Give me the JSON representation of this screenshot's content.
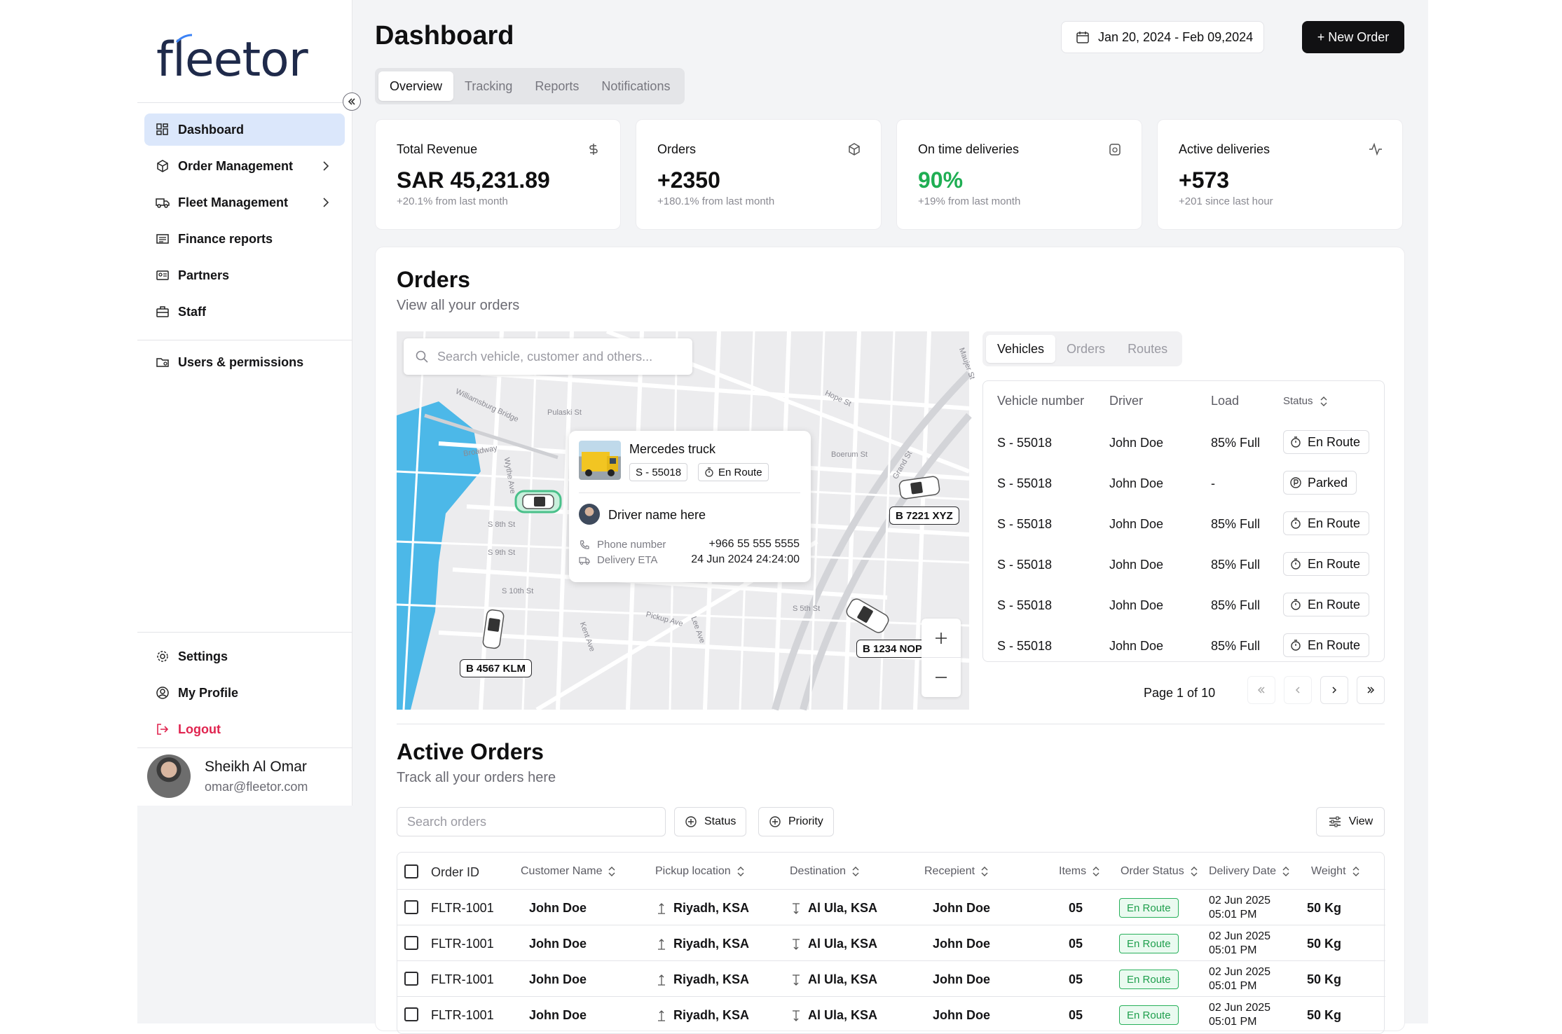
{
  "brand": {
    "logo_text": "fleetor"
  },
  "sidebar": {
    "items": [
      {
        "label": "Dashboard"
      },
      {
        "label": "Order Management"
      },
      {
        "label": "Fleet Management"
      },
      {
        "label": "Finance reports"
      },
      {
        "label": "Partners"
      },
      {
        "label": "Staff"
      },
      {
        "label": "Users & permissions"
      }
    ],
    "bottom": [
      {
        "label": "Settings"
      },
      {
        "label": "My Profile"
      },
      {
        "label": "Logout"
      }
    ],
    "user": {
      "name": "Sheikh Al Omar",
      "email": "omar@fleetor.com"
    }
  },
  "header": {
    "title": "Dashboard",
    "date_range": "Jan 20, 2024 - Feb 09,2024",
    "new_order": "+ New Order",
    "tabs": [
      "Overview",
      "Tracking",
      "Reports",
      "Notifications"
    ]
  },
  "stats": [
    {
      "label": "Total Revenue",
      "value": "SAR 45,231.89",
      "sub": "+20.1% from last month",
      "icon": "dollar-icon"
    },
    {
      "label": "Orders",
      "value": "+2350",
      "sub": "+180.1% from last month",
      "icon": "box-icon"
    },
    {
      "label": "On time deliveries",
      "value": "90%",
      "sub": "+19% from last month",
      "icon": "clock-icon"
    },
    {
      "label": "Active deliveries",
      "value": "+573",
      "sub": "+201 since last hour",
      "icon": "activity-icon"
    }
  ],
  "orders": {
    "title": "Orders",
    "subtitle": "View all your orders",
    "map": {
      "search_placeholder": "Search vehicle, customer and others...",
      "info_card": {
        "vehicle": "Mercedes truck",
        "plate": "S - 55018",
        "status": "En Route",
        "driver": "Driver name here",
        "phone_label": "Phone number",
        "phone": "+966 55 555 5555",
        "eta_label": "Delivery ETA",
        "eta": "24 Jun 2024 24:24:00"
      },
      "plates": [
        "B 7221 XYZ",
        "B 4567 KLM",
        "B 1234 NOP"
      ],
      "streets": [
        "Broadway",
        "Williamsburg Bridge",
        "S 8th St",
        "S 9th St",
        "S 10th St",
        "Pulaski St",
        "Wythe Ave",
        "Pickup Ave",
        "Kent Ave",
        "Hope St",
        "Grand St",
        "Maujer St",
        "Boerum St",
        "S 5th St",
        "Lee Ave"
      ]
    },
    "vehicle_tabs": [
      "Vehicles",
      "Orders",
      "Routes"
    ],
    "vehicle_columns": [
      "Vehicle number",
      "Driver",
      "Load",
      "Status"
    ],
    "vehicles": [
      {
        "number": "S - 55018",
        "driver": "John Doe",
        "load": "85% Full",
        "status": "En Route"
      },
      {
        "number": "S - 55018",
        "driver": "John Doe",
        "load": "-",
        "status": "Parked"
      },
      {
        "number": "S - 55018",
        "driver": "John Doe",
        "load": "85% Full",
        "status": "En Route"
      },
      {
        "number": "S - 55018",
        "driver": "John Doe",
        "load": "85% Full",
        "status": "En Route"
      },
      {
        "number": "S - 55018",
        "driver": "John Doe",
        "load": "85% Full",
        "status": "En Route"
      },
      {
        "number": "S - 55018",
        "driver": "John Doe",
        "load": "85% Full",
        "status": "En Route"
      }
    ],
    "pager": "Page 1 of 10"
  },
  "active_orders": {
    "title": "Active Orders",
    "subtitle": "Track all your orders here",
    "search_placeholder": "Search orders",
    "filters": [
      "Status",
      "Priority"
    ],
    "view_label": "View",
    "columns": [
      "Order ID",
      "Customer Name",
      "Pickup location",
      "Destination",
      "Recepient",
      "Items",
      "Order Status",
      "Delivery Date",
      "Weight"
    ],
    "rows": [
      {
        "id": "FLTR-1001",
        "customer": "John Doe",
        "pickup": "Riyadh, KSA",
        "destination": "Al Ula, KSA",
        "recipient": "John Doe",
        "items": "05",
        "status": "En Route",
        "date": "02 Jun 2025",
        "time": "05:01 PM",
        "weight": "50 Kg"
      },
      {
        "id": "FLTR-1001",
        "customer": "John Doe",
        "pickup": "Riyadh, KSA",
        "destination": "Al Ula, KSA",
        "recipient": "John Doe",
        "items": "05",
        "status": "En Route",
        "date": "02 Jun 2025",
        "time": "05:01 PM",
        "weight": "50 Kg"
      },
      {
        "id": "FLTR-1001",
        "customer": "John Doe",
        "pickup": "Riyadh, KSA",
        "destination": "Al Ula, KSA",
        "recipient": "John Doe",
        "items": "05",
        "status": "En Route",
        "date": "02 Jun 2025",
        "time": "05:01 PM",
        "weight": "50 Kg"
      },
      {
        "id": "FLTR-1001",
        "customer": "John Doe",
        "pickup": "Riyadh, KSA",
        "destination": "Al Ula, KSA",
        "recipient": "John Doe",
        "items": "05",
        "status": "En Route",
        "date": "02 Jun 2025",
        "time": "05:01 PM",
        "weight": "50 Kg"
      }
    ]
  },
  "colors": {
    "accent_active": "#dbe7fb",
    "success": "#1fae53",
    "danger": "#e0244f",
    "primary_button": "#111113",
    "water": "#4cb8e8"
  }
}
